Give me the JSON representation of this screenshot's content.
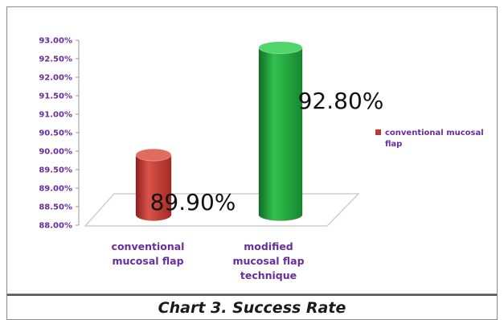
{
  "caption": "Chart 3. Success Rate",
  "chart_data": {
    "type": "bar",
    "three_d": true,
    "categories": [
      "conventional mucosal flap",
      "modified mucosal flap technique"
    ],
    "category_label_lines": [
      [
        "conventional",
        "mucosal flap"
      ],
      [
        "modified",
        "mucosal flap",
        "technique"
      ]
    ],
    "series": [
      {
        "name": "conventional mucosal flap",
        "values": [
          89.9,
          92.8
        ],
        "data_labels": [
          "89.90%",
          "92.80%"
        ],
        "colors": [
          "#c0392b",
          "#1f9e3a"
        ]
      }
    ],
    "yticks": [
      "93.00%",
      "92.50%",
      "92.00%",
      "91.50%",
      "91.00%",
      "90.50%",
      "90.00%",
      "89.50%",
      "89.00%",
      "88.50%",
      "88.00%"
    ],
    "ylim": [
      88,
      93
    ],
    "legend": {
      "position": "right",
      "label_lines": [
        "conventional mucosal",
        "flap"
      ],
      "color": "#c0392b"
    },
    "colors": {
      "axis_text": "#6a2d9e",
      "floor": "#cfcfcf"
    }
  }
}
